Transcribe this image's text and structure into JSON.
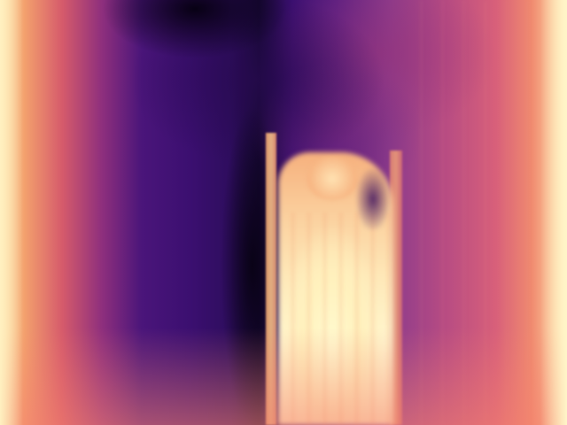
{
  "scene": {
    "description_visible_text": "",
    "palette": {
      "edge_bright": "#fff0c0",
      "warm": "#f08a6f",
      "mid": "#d65b6b",
      "purple": "#4a157a",
      "dark": "#170835",
      "figure_bright": "#fff4c8"
    }
  }
}
